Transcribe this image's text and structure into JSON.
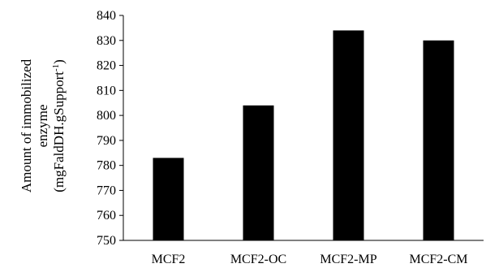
{
  "chart_data": {
    "type": "bar",
    "title": "",
    "xlabel": "",
    "ylabel_lines": [
      "Amount of immobilized",
      "enzyme",
      "(mgFaldDH.gSupport",
      "-1",
      ")"
    ],
    "categories": [
      "MCF2",
      "MCF2-OC",
      "MCF2-MP",
      "MCF2-CM"
    ],
    "values": [
      783,
      804,
      834,
      830
    ],
    "ylim": [
      750,
      840
    ],
    "yticks": [
      750,
      760,
      770,
      780,
      790,
      800,
      810,
      820,
      830,
      840
    ],
    "grid": false,
    "legend": "none",
    "bar_color": "#000000"
  }
}
